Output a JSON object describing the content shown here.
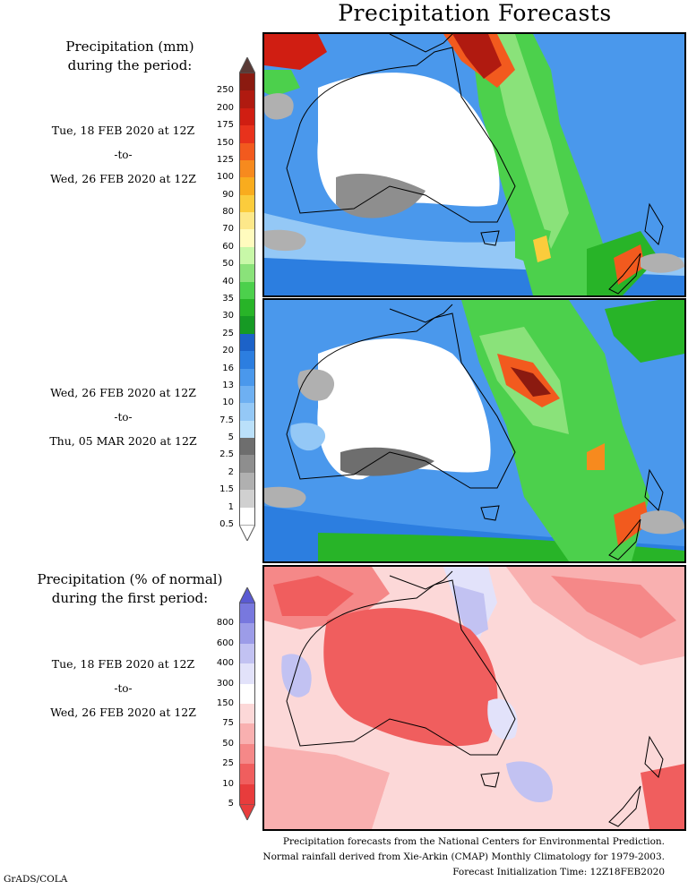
{
  "title": "Precipitation Forecasts",
  "mm_header": [
    "Precipitation (mm)",
    "during the period:"
  ],
  "period1": {
    "start": "Tue, 18 FEB 2020 at 12Z",
    "sep": "-to-",
    "end": "Wed, 26 FEB 2020 at 12Z"
  },
  "period2": {
    "start": "Wed, 26 FEB 2020 at 12Z",
    "sep": "-to-",
    "end": "Thu, 05 MAR 2020 at 12Z"
  },
  "pct_header": [
    "Precipitation (% of normal)",
    "during the first period:"
  ],
  "period3": {
    "start": "Tue, 18 FEB 2020 at 12Z",
    "sep": "-to-",
    "end": "Wed, 26 FEB 2020 at 12Z"
  },
  "mm_scale": {
    "labels": [
      "250",
      "200",
      "175",
      "150",
      "125",
      "100",
      "90",
      "80",
      "70",
      "60",
      "50",
      "40",
      "35",
      "30",
      "25",
      "20",
      "16",
      "13",
      "10",
      "7.5",
      "5",
      "2.5",
      "2",
      "1.5",
      "1",
      "0.5"
    ],
    "colors": [
      "#5a3a36",
      "#8b1a10",
      "#b01a10",
      "#d01e12",
      "#e8321c",
      "#f25a1e",
      "#f78a1e",
      "#f9ac1e",
      "#fbcc3c",
      "#fde88a",
      "#fffbbe",
      "#c8f8a8",
      "#8ae27a",
      "#4cd04c",
      "#28b428",
      "#169a24",
      "#1c62c8",
      "#2c7ee0",
      "#4a98ec",
      "#6eb0f2",
      "#94c8f6",
      "#bae0fa",
      "#6e6e6e",
      "#8e8e8e",
      "#b0b0b0",
      "#d0d0d0"
    ]
  },
  "pct_scale": {
    "labels": [
      "800",
      "600",
      "400",
      "300",
      "150",
      "75",
      "50",
      "25",
      "10",
      "5"
    ],
    "colors": [
      "#5a5ad2",
      "#7878de",
      "#9c9ce8",
      "#c2c2f2",
      "#e2e2fa",
      "#ffffff",
      "#fcd8d8",
      "#f9b0b0",
      "#f58888",
      "#f05e5e",
      "#e83c3c"
    ]
  },
  "footer": [
    "Precipitation forecasts from the National Centers for Environmental Prediction.",
    "Normal rainfall derived from Xie-Arkin (CMAP) Monthly Climatology for 1979-2003.",
    "Forecast Initialization Time: 12Z18FEB2020"
  ],
  "credit": "GrADS/COLA"
}
